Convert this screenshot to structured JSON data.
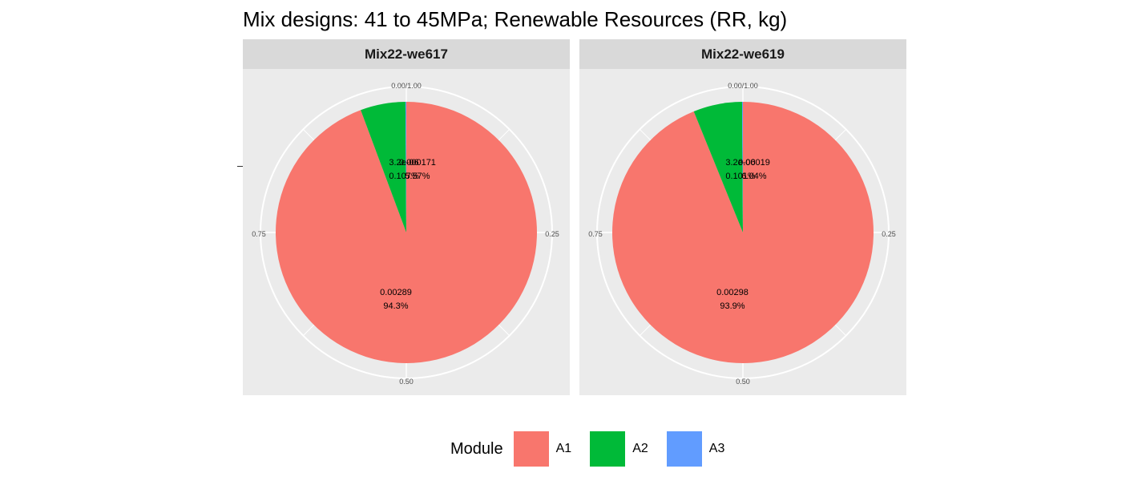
{
  "chart_data": {
    "type": "pie",
    "title": "Mix designs: 41 to 45MPa; Renewable Resources (RR, kg)",
    "legend": {
      "title": "Module",
      "position": "bottom",
      "entries": [
        {
          "name": "A1",
          "color": "#F8766D"
        },
        {
          "name": "A2",
          "color": "#00BA38"
        },
        {
          "name": "A3",
          "color": "#619CFF"
        }
      ]
    },
    "angle_axis_ticks": [
      "0.00/1.00",
      "0.25",
      "0.50",
      "0.75"
    ],
    "panel_background": "#EBEBEB",
    "strip_background": "#D9D9D9",
    "facets": [
      {
        "strip_label": "Mix22-we617",
        "slices": [
          {
            "module": "A1",
            "value": 0.00289,
            "share": 0.943,
            "value_label": "0.00289",
            "pct_label": "94.3%"
          },
          {
            "module": "A2",
            "value": 0.000171,
            "share": 0.0557,
            "value_label": "0.000171",
            "pct_label": "5.57%"
          },
          {
            "module": "A3",
            "value": 3.2e-06,
            "share": 0.00107,
            "value_label": "3.2e-06",
            "pct_label": "0.107%"
          }
        ]
      },
      {
        "strip_label": "Mix22-we619",
        "slices": [
          {
            "module": "A1",
            "value": 0.00298,
            "share": 0.939,
            "value_label": "0.00298",
            "pct_label": "93.9%"
          },
          {
            "module": "A2",
            "value": 0.00019,
            "share": 0.0604,
            "value_label": "0.00019",
            "pct_label": "6.04%"
          },
          {
            "module": "A3",
            "value": 3.2e-06,
            "share": 0.00101,
            "value_label": "3.2e-06",
            "pct_label": "0.101%"
          }
        ]
      }
    ]
  }
}
